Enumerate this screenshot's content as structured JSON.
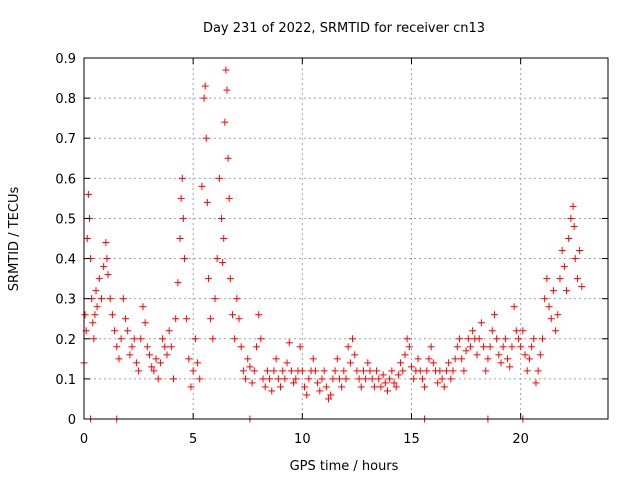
{
  "chart_data": {
    "type": "scatter",
    "title": "Day 231 of 2022, SRMTID for receiver cn13",
    "xlabel": "GPS time / hours",
    "ylabel": "SRMTID / TECUs",
    "xlim": [
      0,
      24
    ],
    "ylim": [
      0,
      0.9
    ],
    "xticks": [
      0,
      5,
      10,
      15,
      20
    ],
    "xtick_labels": [
      "0",
      "5",
      "10",
      "15",
      "20"
    ],
    "yticks": [
      0,
      0.1,
      0.2,
      0.3,
      0.4,
      0.5,
      0.6,
      0.7,
      0.8,
      0.9
    ],
    "ytick_labels": [
      "0",
      "0.1",
      "0.2",
      "0.3",
      "0.4",
      "0.5",
      "0.6",
      "0.7",
      "0.8",
      "0.9"
    ],
    "grid": true,
    "marker": "+",
    "color": "#ff0000",
    "series": [
      {
        "name": "SRMTID",
        "points": [
          [
            0.0,
            0.14
          ],
          [
            0.05,
            0.26
          ],
          [
            0.1,
            0.22
          ],
          [
            0.15,
            0.45
          ],
          [
            0.2,
            0.56
          ],
          [
            0.25,
            0.5
          ],
          [
            0.3,
            0.4
          ],
          [
            0.35,
            0.3
          ],
          [
            0.4,
            0.24
          ],
          [
            0.45,
            0.2
          ],
          [
            0.5,
            0.26
          ],
          [
            0.55,
            0.32
          ],
          [
            0.6,
            0.28
          ],
          [
            0.7,
            0.35
          ],
          [
            0.8,
            0.3
          ],
          [
            0.9,
            0.38
          ],
          [
            1.0,
            0.44
          ],
          [
            1.05,
            0.4
          ],
          [
            1.1,
            0.36
          ],
          [
            1.2,
            0.3
          ],
          [
            1.3,
            0.26
          ],
          [
            1.4,
            0.22
          ],
          [
            1.5,
            0.18
          ],
          [
            1.6,
            0.15
          ],
          [
            1.7,
            0.2
          ],
          [
            1.8,
            0.3
          ],
          [
            1.9,
            0.25
          ],
          [
            2.0,
            0.22
          ],
          [
            2.1,
            0.16
          ],
          [
            2.2,
            0.18
          ],
          [
            2.3,
            0.2
          ],
          [
            2.4,
            0.14
          ],
          [
            2.5,
            0.12
          ],
          [
            2.6,
            0.2
          ],
          [
            2.7,
            0.28
          ],
          [
            2.8,
            0.24
          ],
          [
            2.9,
            0.18
          ],
          [
            3.0,
            0.16
          ],
          [
            3.1,
            0.13
          ],
          [
            3.2,
            0.12
          ],
          [
            3.3,
            0.15
          ],
          [
            3.4,
            0.1
          ],
          [
            3.5,
            0.14
          ],
          [
            3.6,
            0.2
          ],
          [
            3.7,
            0.18
          ],
          [
            3.8,
            0.16
          ],
          [
            3.9,
            0.22
          ],
          [
            4.0,
            0.18
          ],
          [
            4.1,
            0.1
          ],
          [
            4.2,
            0.25
          ],
          [
            4.3,
            0.34
          ],
          [
            4.4,
            0.45
          ],
          [
            4.45,
            0.55
          ],
          [
            4.5,
            0.6
          ],
          [
            4.55,
            0.5
          ],
          [
            4.6,
            0.4
          ],
          [
            4.7,
            0.25
          ],
          [
            4.8,
            0.15
          ],
          [
            4.9,
            0.08
          ],
          [
            5.0,
            0.12
          ],
          [
            5.1,
            0.2
          ],
          [
            5.2,
            0.14
          ],
          [
            5.3,
            0.1
          ],
          [
            5.4,
            0.58
          ],
          [
            5.5,
            0.8
          ],
          [
            5.55,
            0.83
          ],
          [
            5.6,
            0.7
          ],
          [
            5.65,
            0.54
          ],
          [
            5.7,
            0.35
          ],
          [
            5.8,
            0.25
          ],
          [
            5.9,
            0.2
          ],
          [
            6.0,
            0.3
          ],
          [
            6.1,
            0.4
          ],
          [
            6.2,
            0.6
          ],
          [
            6.3,
            0.5
          ],
          [
            6.35,
            0.39
          ],
          [
            6.4,
            0.45
          ],
          [
            6.45,
            0.74
          ],
          [
            6.5,
            0.87
          ],
          [
            6.55,
            0.82
          ],
          [
            6.6,
            0.65
          ],
          [
            6.65,
            0.55
          ],
          [
            6.7,
            0.35
          ],
          [
            6.8,
            0.26
          ],
          [
            6.9,
            0.2
          ],
          [
            7.0,
            0.3
          ],
          [
            7.1,
            0.25
          ],
          [
            7.2,
            0.18
          ],
          [
            7.3,
            0.12
          ],
          [
            7.4,
            0.1
          ],
          [
            7.5,
            0.15
          ],
          [
            7.6,
            0.13
          ],
          [
            7.7,
            0.09
          ],
          [
            7.8,
            0.12
          ],
          [
            7.9,
            0.18
          ],
          [
            8.0,
            0.26
          ],
          [
            8.1,
            0.2
          ],
          [
            8.2,
            0.1
          ],
          [
            8.3,
            0.08
          ],
          [
            8.4,
            0.12
          ],
          [
            8.5,
            0.1
          ],
          [
            8.6,
            0.07
          ],
          [
            8.7,
            0.12
          ],
          [
            8.8,
            0.15
          ],
          [
            8.9,
            0.1
          ],
          [
            9.0,
            0.08
          ],
          [
            9.1,
            0.12
          ],
          [
            9.2,
            0.1
          ],
          [
            9.3,
            0.14
          ],
          [
            9.4,
            0.19
          ],
          [
            9.5,
            0.12
          ],
          [
            9.6,
            0.09
          ],
          [
            9.7,
            0.1
          ],
          [
            9.8,
            0.12
          ],
          [
            9.9,
            0.18
          ],
          [
            10.0,
            0.12
          ],
          [
            10.1,
            0.08
          ],
          [
            10.2,
            0.06
          ],
          [
            10.3,
            0.1
          ],
          [
            10.4,
            0.12
          ],
          [
            10.5,
            0.15
          ],
          [
            10.6,
            0.12
          ],
          [
            10.7,
            0.09
          ],
          [
            10.8,
            0.07
          ],
          [
            10.9,
            0.1
          ],
          [
            11.0,
            0.12
          ],
          [
            11.1,
            0.08
          ],
          [
            11.2,
            0.05
          ],
          [
            11.3,
            0.06
          ],
          [
            11.4,
            0.1
          ],
          [
            11.5,
            0.12
          ],
          [
            11.6,
            0.15
          ],
          [
            11.7,
            0.1
          ],
          [
            11.8,
            0.08
          ],
          [
            11.9,
            0.12
          ],
          [
            12.0,
            0.1
          ],
          [
            12.1,
            0.18
          ],
          [
            12.2,
            0.14
          ],
          [
            12.3,
            0.2
          ],
          [
            12.4,
            0.16
          ],
          [
            12.5,
            0.12
          ],
          [
            12.6,
            0.1
          ],
          [
            12.7,
            0.08
          ],
          [
            12.8,
            0.12
          ],
          [
            12.9,
            0.1
          ],
          [
            13.0,
            0.14
          ],
          [
            13.1,
            0.12
          ],
          [
            13.2,
            0.1
          ],
          [
            13.3,
            0.08
          ],
          [
            13.4,
            0.12
          ],
          [
            13.5,
            0.1
          ],
          [
            13.6,
            0.08
          ],
          [
            13.7,
            0.11
          ],
          [
            13.8,
            0.09
          ],
          [
            13.9,
            0.07
          ],
          [
            14.0,
            0.1
          ],
          [
            14.1,
            0.12
          ],
          [
            14.2,
            0.09
          ],
          [
            14.3,
            0.08
          ],
          [
            14.4,
            0.11
          ],
          [
            14.5,
            0.14
          ],
          [
            14.6,
            0.12
          ],
          [
            14.7,
            0.16
          ],
          [
            14.8,
            0.2
          ],
          [
            14.9,
            0.18
          ],
          [
            15.0,
            0.13
          ],
          [
            15.1,
            0.1
          ],
          [
            15.2,
            0.12
          ],
          [
            15.3,
            0.15
          ],
          [
            15.4,
            0.12
          ],
          [
            15.5,
            0.1
          ],
          [
            15.6,
            0.08
          ],
          [
            15.7,
            0.12
          ],
          [
            15.8,
            0.15
          ],
          [
            15.9,
            0.18
          ],
          [
            16.0,
            0.14
          ],
          [
            16.1,
            0.12
          ],
          [
            16.2,
            0.09
          ],
          [
            16.3,
            0.12
          ],
          [
            16.4,
            0.1
          ],
          [
            16.5,
            0.08
          ],
          [
            16.6,
            0.12
          ],
          [
            16.7,
            0.14
          ],
          [
            16.8,
            0.1
          ],
          [
            16.9,
            0.12
          ],
          [
            17.0,
            0.15
          ],
          [
            17.1,
            0.18
          ],
          [
            17.2,
            0.2
          ],
          [
            17.3,
            0.15
          ],
          [
            17.4,
            0.12
          ],
          [
            17.5,
            0.17
          ],
          [
            17.6,
            0.2
          ],
          [
            17.7,
            0.18
          ],
          [
            17.8,
            0.22
          ],
          [
            17.9,
            0.2
          ],
          [
            18.0,
            0.16
          ],
          [
            18.1,
            0.2
          ],
          [
            18.2,
            0.24
          ],
          [
            18.3,
            0.18
          ],
          [
            18.4,
            0.12
          ],
          [
            18.5,
            0.15
          ],
          [
            18.6,
            0.18
          ],
          [
            18.7,
            0.22
          ],
          [
            18.8,
            0.26
          ],
          [
            18.9,
            0.2
          ],
          [
            19.0,
            0.16
          ],
          [
            19.1,
            0.14
          ],
          [
            19.2,
            0.18
          ],
          [
            19.3,
            0.2
          ],
          [
            19.4,
            0.15
          ],
          [
            19.5,
            0.13
          ],
          [
            19.6,
            0.18
          ],
          [
            19.7,
            0.28
          ],
          [
            19.8,
            0.22
          ],
          [
            19.9,
            0.2
          ],
          [
            20.0,
            0.18
          ],
          [
            20.1,
            0.22
          ],
          [
            20.2,
            0.16
          ],
          [
            20.3,
            0.12
          ],
          [
            20.4,
            0.15
          ],
          [
            20.5,
            0.18
          ],
          [
            20.6,
            0.2
          ],
          [
            20.7,
            0.09
          ],
          [
            20.8,
            0.12
          ],
          [
            20.9,
            0.16
          ],
          [
            21.0,
            0.2
          ],
          [
            21.1,
            0.3
          ],
          [
            21.2,
            0.35
          ],
          [
            21.3,
            0.28
          ],
          [
            21.4,
            0.25
          ],
          [
            21.5,
            0.32
          ],
          [
            21.6,
            0.22
          ],
          [
            21.7,
            0.26
          ],
          [
            21.8,
            0.35
          ],
          [
            21.9,
            0.42
          ],
          [
            22.0,
            0.38
          ],
          [
            22.1,
            0.32
          ],
          [
            22.2,
            0.45
          ],
          [
            22.3,
            0.5
          ],
          [
            22.4,
            0.53
          ],
          [
            22.45,
            0.48
          ],
          [
            22.5,
            0.4
          ],
          [
            22.6,
            0.35
          ],
          [
            22.7,
            0.42
          ],
          [
            22.8,
            0.33
          ]
        ]
      }
    ],
    "zero_points": [
      0.3,
      1.5,
      7.6,
      15.6,
      18.5,
      20.1
    ]
  }
}
